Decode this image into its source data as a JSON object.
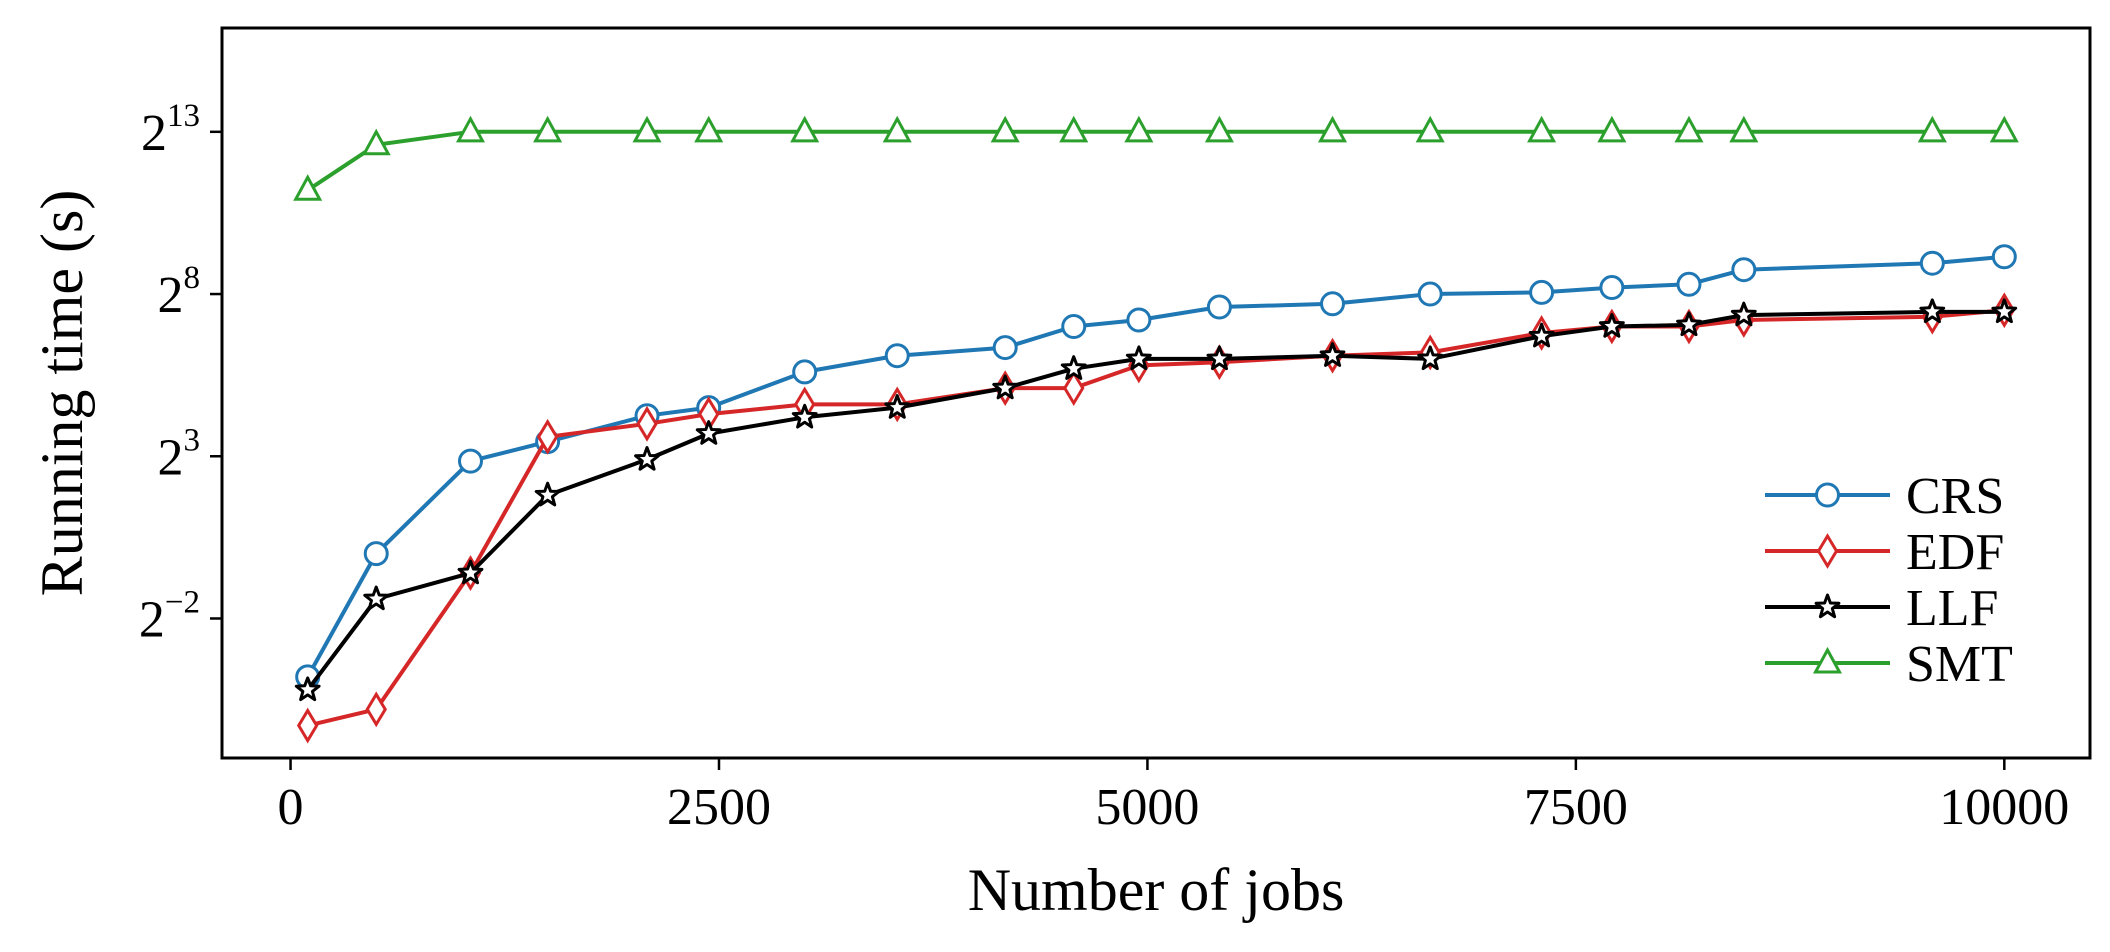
{
  "chart_data": {
    "type": "line",
    "title": "",
    "xlabel": "Number of jobs",
    "ylabel": "Running time (s)",
    "xlim": [
      -400,
      10500
    ],
    "ylim_log2": [
      -6.3,
      16.2
    ],
    "y_scale": "log2",
    "x_ticks": [
      0,
      2500,
      5000,
      7500,
      10000
    ],
    "x_tick_labels": [
      "0",
      "2500",
      "5000",
      "7500",
      "10000"
    ],
    "y_ticks": [
      {
        "base": "2",
        "exp": "−2",
        "log2": -2
      },
      {
        "base": "2",
        "exp": "3",
        "log2": 3
      },
      {
        "base": "2",
        "exp": "8",
        "log2": 8
      },
      {
        "base": "2",
        "exp": "13",
        "log2": 13
      }
    ],
    "grid": false,
    "legend_position": "lower-right",
    "x": [
      100,
      500,
      1050,
      1500,
      2080,
      2440,
      3000,
      3540,
      4170,
      4570,
      4950,
      5420,
      6080,
      6650,
      7300,
      7710,
      8160,
      8480,
      9580,
      10000
    ],
    "series": [
      {
        "name": "CRS",
        "color": "#1f77b4",
        "marker": "circle",
        "y_log2": [
          -3.8,
          0.0,
          2.85,
          3.45,
          4.25,
          4.5,
          5.6,
          6.1,
          6.35,
          7.0,
          7.2,
          7.6,
          7.7,
          8.0,
          8.05,
          8.2,
          8.3,
          8.75,
          8.95,
          9.15
        ]
      },
      {
        "name": "EDF",
        "color": "#d62728",
        "marker": "thin_diamond",
        "y_log2": [
          -5.3,
          -4.8,
          -0.6,
          3.6,
          4.0,
          4.3,
          4.6,
          4.6,
          5.1,
          5.1,
          5.8,
          5.9,
          6.1,
          6.2,
          6.8,
          7.0,
          7.0,
          7.2,
          7.3,
          7.5
        ]
      },
      {
        "name": "LLF",
        "color": "#000000",
        "marker": "star",
        "y_log2": [
          -4.2,
          -1.4,
          -0.6,
          1.8,
          2.9,
          3.7,
          4.2,
          4.5,
          5.1,
          5.7,
          6.0,
          6.0,
          6.1,
          6.0,
          6.7,
          7.0,
          7.05,
          7.35,
          7.45,
          7.45
        ]
      },
      {
        "name": "SMT",
        "color": "#2ca02c",
        "marker": "triangle",
        "y_log2": [
          11.2,
          12.6,
          13.0,
          13.0,
          13.0,
          13.0,
          13.0,
          13.0,
          13.0,
          13.0,
          13.0,
          13.0,
          13.0,
          13.0,
          13.0,
          13.0,
          13.0,
          13.0,
          13.0,
          13.0
        ]
      }
    ]
  }
}
